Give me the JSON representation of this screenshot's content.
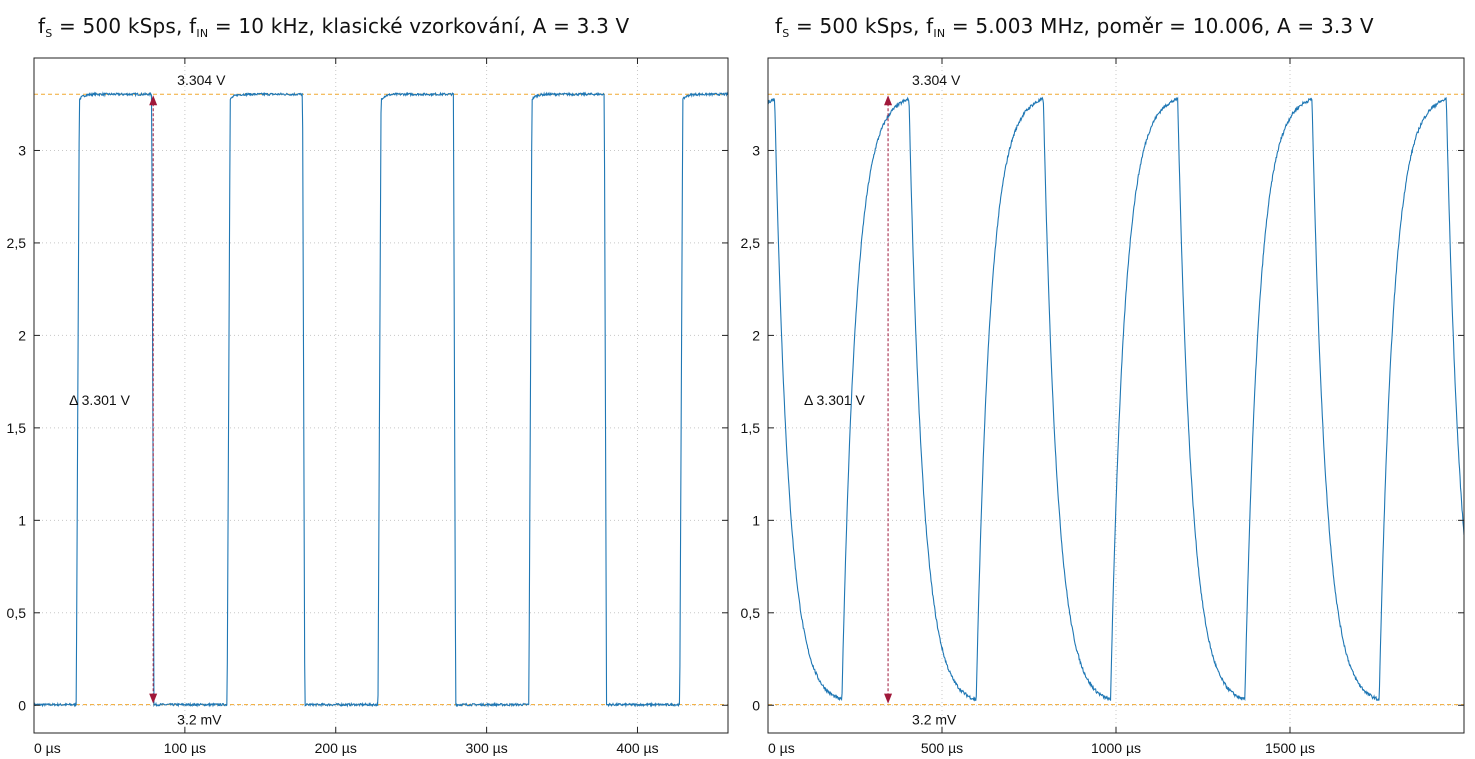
{
  "chart_data": [
    {
      "type": "line",
      "title_parts": {
        "f1": "f",
        "s1": "S",
        "mid": " = 500 kSps, ",
        "f2": "f",
        "s2": "IN",
        "rest": " = 10 kHz, klasické vzorkování, A = 3.3 V"
      },
      "xlabel": "",
      "ylabel": "",
      "xlim": [
        0,
        460
      ],
      "ylim": [
        -0.15,
        3.5
      ],
      "x_ticks": [
        0,
        100,
        200,
        300,
        400
      ],
      "x_tick_labels": [
        "0 µs",
        "100 µs",
        "200 µs",
        "300 µs",
        "400 µs"
      ],
      "y_ticks": [
        0,
        0.5,
        1,
        1.5,
        2,
        2.5,
        3
      ],
      "y_tick_labels": [
        "0",
        "0,5",
        "1",
        "1,5",
        "2",
        "2,5",
        "3"
      ],
      "grid": true,
      "series": [
        {
          "color": "#1f77b4",
          "shape": "square",
          "high": 3.304,
          "low": 0.0032,
          "period": 100,
          "rise_start": 28,
          "fall_start": 78,
          "rise_time": 2,
          "fall_time": 1.5
        }
      ],
      "reference_lines": [
        {
          "y": 3.304,
          "color": "#f0a830"
        },
        {
          "y": 0.0032,
          "color": "#f0a830"
        }
      ],
      "annotations": {
        "high_label": "3.304 V",
        "low_label": "3.2 mV",
        "delta_label": "Δ 3.301 V",
        "marker_x": 79,
        "marker_color": "#a0183a"
      }
    },
    {
      "type": "line",
      "title_parts": {
        "f1": "f",
        "s1": "S",
        "mid": " = 500 kSps, ",
        "f2": "f",
        "s2": "IN",
        "rest": " = 5.003 MHz, poměr = 10.006, A = 3.3 V"
      },
      "xlabel": "",
      "ylabel": "",
      "xlim": [
        0,
        2000
      ],
      "ylim": [
        -0.15,
        3.5
      ],
      "x_ticks": [
        0,
        500,
        1000,
        1500
      ],
      "x_tick_labels": [
        "0 µs",
        "500 µs",
        "1000 µs",
        "1500 µs"
      ],
      "y_ticks": [
        0,
        0.5,
        1,
        1.5,
        2,
        2.5,
        3
      ],
      "y_tick_labels": [
        "0",
        "0,5",
        "1",
        "1,5",
        "2",
        "2,5",
        "3"
      ],
      "grid": true,
      "series": [
        {
          "color": "#1f77b4",
          "shape": "aliased",
          "high": 3.304,
          "low": 0.0032,
          "period": 386,
          "rise_start": 212,
          "fall_start": 405,
          "tau": 40
        }
      ],
      "reference_lines": [
        {
          "y": 3.304,
          "color": "#f0a830"
        },
        {
          "y": 0.0032,
          "color": "#f0a830"
        }
      ],
      "annotations": {
        "high_label": "3.304 V",
        "low_label": "3.2 mV",
        "delta_label": "Δ 3.301 V",
        "marker_x": 345,
        "marker_color": "#a0183a"
      }
    }
  ]
}
